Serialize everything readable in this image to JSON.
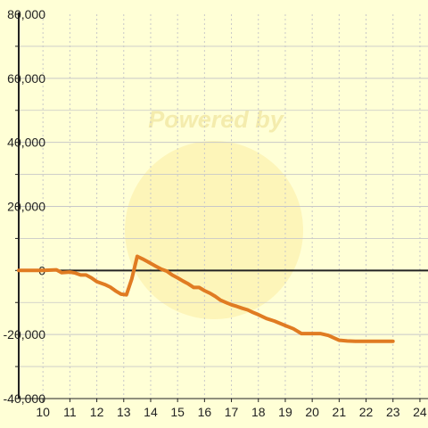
{
  "watermark": {
    "text": "Powered by"
  },
  "colors": {
    "background": "#ffffd6",
    "line": "#e07b22",
    "axis": "#222222",
    "grid": "#c8c8c8",
    "watermark": "#f3e9a6"
  },
  "chart_data": {
    "type": "line",
    "title": "",
    "xlabel": "",
    "ylabel": "",
    "xlim": [
      9.1,
      24.3
    ],
    "ylim": [
      -40000,
      80000
    ],
    "grid": true,
    "x_ticks": [
      10,
      11,
      12,
      13,
      14,
      15,
      16,
      17,
      18,
      19,
      20,
      21,
      22,
      23,
      24
    ],
    "x_tick_labels": [
      "10",
      "11",
      "12",
      "13",
      "14",
      "15",
      "16",
      "17",
      "18",
      "19",
      "20",
      "21",
      "22",
      "23",
      "24"
    ],
    "y_ticks": [
      80000,
      60000,
      40000,
      20000,
      0,
      -20000,
      -40000
    ],
    "y_tick_labels": [
      "80,000",
      "60,000",
      "40,000",
      "20,000",
      "0",
      "-20,000",
      "-40,000"
    ],
    "series": [
      {
        "x": [
          9.1,
          10.0,
          10.5,
          10.7,
          11.0,
          11.2,
          11.4,
          11.6,
          11.8,
          12.0,
          12.3,
          12.5,
          12.7,
          12.9,
          13.1,
          13.3,
          13.5,
          13.7,
          13.9,
          14.0,
          14.2,
          14.4,
          14.6,
          14.8,
          15.0,
          15.2,
          15.4,
          15.6,
          15.8,
          16.0,
          16.2,
          16.4,
          16.6,
          16.8,
          17.0,
          17.2,
          17.4,
          17.6,
          17.8,
          18.0,
          18.3,
          18.6,
          19.0,
          19.3,
          19.6,
          20.0,
          20.3,
          20.6,
          21.0,
          21.3,
          21.6,
          22.0,
          22.3,
          22.6,
          23.0
        ],
        "y": [
          0,
          0,
          200,
          -700,
          -500,
          -800,
          -1400,
          -1400,
          -2300,
          -3500,
          -4400,
          -5200,
          -6400,
          -7400,
          -7600,
          -2600,
          4400,
          3600,
          2700,
          2200,
          1300,
          400,
          -200,
          -1400,
          -2300,
          -3300,
          -4200,
          -5300,
          -5300,
          -6300,
          -7100,
          -8100,
          -9300,
          -10000,
          -10700,
          -11200,
          -11800,
          -12300,
          -13100,
          -13800,
          -15000,
          -15800,
          -17200,
          -18200,
          -19700,
          -19700,
          -19700,
          -20300,
          -21800,
          -22000,
          -22100,
          -22100,
          -22100,
          -22100,
          -22100
        ]
      }
    ]
  }
}
